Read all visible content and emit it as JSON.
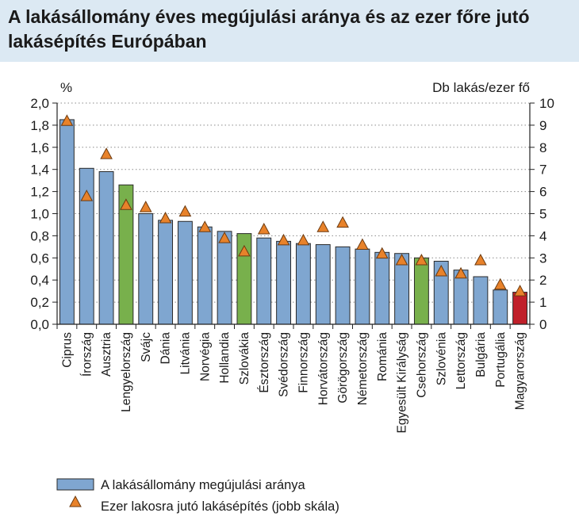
{
  "header": {
    "title": "A lakásállomány éves megújulási aránya és az ezer főre jutó lakásépítés Európában"
  },
  "chart_data": {
    "type": "bar",
    "title": "A lakásállomány éves megújulási aránya és az ezer főre jutó lakásépítés Európában",
    "ylabel_left": "%",
    "ylabel_right": "Db lakás/ezer fő",
    "ylim_left": [
      0,
      2.0
    ],
    "ylim_right": [
      0,
      10
    ],
    "yticks_left": [
      "0,0",
      "0,2",
      "0,4",
      "0,6",
      "0,8",
      "1,0",
      "1,2",
      "1,4",
      "1,6",
      "1,8",
      "2,0"
    ],
    "yticks_right": [
      "0",
      "1",
      "2",
      "3",
      "4",
      "5",
      "6",
      "7",
      "8",
      "9",
      "10"
    ],
    "grid": "horizontal dotted",
    "legend_position": "bottom",
    "categories": [
      "Ciprus",
      "Írország",
      "Ausztria",
      "Lengyelország",
      "Svájc",
      "Dánia",
      "Litvánia",
      "Norvégia",
      "Hollandia",
      "Szlovákia",
      "Észtország",
      "Svédország",
      "Finnország",
      "Horvátország",
      "Görögország",
      "Németország",
      "Románia",
      "Egyesült Királyság",
      "Csehország",
      "Szlovénia",
      "Lettország",
      "Bulgária",
      "Portugália",
      "Magyarország"
    ],
    "series": [
      {
        "name": "A lakásállomány megújulási aránya",
        "type": "bar",
        "axis": "left",
        "values": [
          1.85,
          1.41,
          1.38,
          1.26,
          1.0,
          0.94,
          0.93,
          0.88,
          0.84,
          0.82,
          0.78,
          0.75,
          0.73,
          0.72,
          0.7,
          0.68,
          0.65,
          0.64,
          0.6,
          0.57,
          0.49,
          0.43,
          0.31,
          0.29
        ],
        "highlight": [
          "Lengyelország",
          "Szlovákia",
          "Csehország",
          "Magyarország"
        ]
      },
      {
        "name": "Ezer lakosra jutó lakásépítés (jobb skála)",
        "type": "scatter",
        "marker": "triangle",
        "axis": "right",
        "values": [
          9.2,
          5.8,
          7.7,
          5.4,
          5.3,
          4.8,
          5.1,
          4.4,
          3.9,
          3.3,
          4.3,
          3.8,
          3.8,
          4.4,
          4.6,
          3.6,
          3.2,
          2.9,
          2.9,
          2.4,
          2.3,
          2.9,
          1.8,
          1.5
        ]
      }
    ],
    "colors": {
      "bar_default": "#7fa6d0",
      "bar_v4": "#78b04c",
      "bar_hungary": "#c0202a",
      "bar_edge": "#2a2a2a",
      "marker_fill": "#e8822a",
      "marker_edge": "#6b3a10",
      "grid": "#8a8a8a",
      "header_bg": "#dce9f3"
    }
  }
}
